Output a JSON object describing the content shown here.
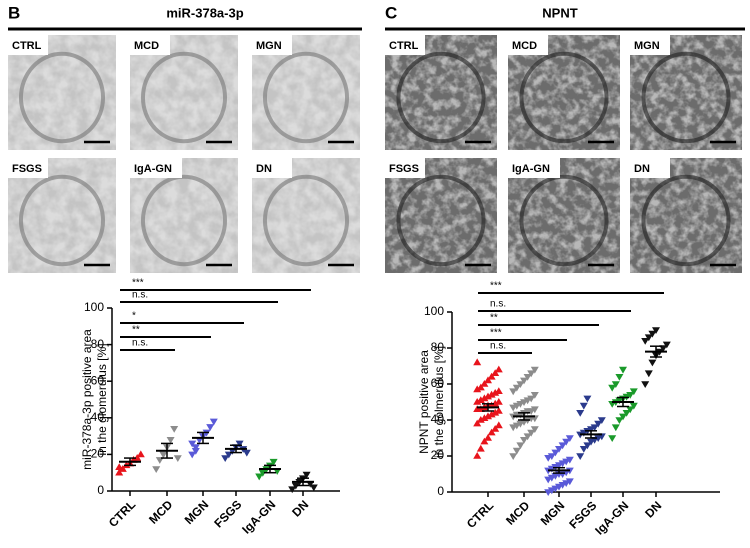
{
  "chart_data": [
    {
      "type": "dot",
      "panel": "B",
      "title": "miR-378a-3p",
      "image_labels": [
        "CTRL",
        "MCD",
        "MGN",
        "FSGS",
        "IgA-GN",
        "DN"
      ],
      "y_label": [
        "miR-378a-3p positive area",
        "in the glomerulus [%]"
      ],
      "categories": [
        "CTRL",
        "MCD",
        "MGN",
        "FSGS",
        "IgA-GN",
        "DN"
      ],
      "colors": [
        "#e8141c",
        "#8c8c8c",
        "#5a5ad8",
        "#2a3a8c",
        "#1a9a2a",
        "#111111"
      ],
      "points": [
        [
          10,
          12,
          14,
          15,
          17,
          18,
          20,
          13
        ],
        [
          12,
          17,
          20,
          24,
          28,
          34,
          18
        ],
        [
          20,
          24,
          28,
          30,
          32,
          35,
          38,
          26,
          22
        ],
        [
          18,
          20,
          22,
          24,
          26,
          23,
          21
        ],
        [
          8,
          10,
          12,
          14,
          16,
          11
        ],
        [
          1,
          3,
          5,
          7,
          9,
          4,
          2
        ]
      ],
      "means": [
        16,
        22,
        29,
        23,
        12,
        5
      ],
      "sem": [
        2,
        4,
        3,
        2,
        2,
        2
      ],
      "ylim": [
        0,
        100
      ],
      "yticks": [
        0,
        20,
        40,
        60,
        80,
        100
      ],
      "significance": [
        {
          "label": "***",
          "pair": [
            "CTRL",
            "DN"
          ]
        },
        {
          "label": "n.s.",
          "pair": [
            "CTRL",
            "IgA-GN"
          ]
        },
        {
          "label": "*",
          "pair": [
            "CTRL",
            "FSGS"
          ]
        },
        {
          "label": "**",
          "pair": [
            "CTRL",
            "MGN"
          ]
        },
        {
          "label": "n.s.",
          "pair": [
            "CTRL",
            "MCD"
          ]
        }
      ]
    },
    {
      "type": "dot",
      "panel": "C",
      "title": "NPNT",
      "image_labels": [
        "CTRL",
        "MCD",
        "MGN",
        "FSGS",
        "IgA-GN",
        "DN"
      ],
      "y_label": [
        "NPNT positive area",
        "in the golmerulus [%]"
      ],
      "categories": [
        "CTRL",
        "MCD",
        "MGN",
        "FSGS",
        "IgA-GN",
        "DN"
      ],
      "colors": [
        "#e8141c",
        "#8c8c8c",
        "#5a5ad8",
        "#2a3a8c",
        "#1a9a2a",
        "#111111"
      ],
      "points": [
        [
          20,
          24,
          28,
          30,
          33,
          35,
          37,
          38,
          40,
          41,
          42,
          43,
          44,
          45,
          46,
          46,
          47,
          48,
          48,
          49,
          50,
          50,
          51,
          52,
          53,
          54,
          55,
          56,
          57,
          58,
          60,
          62,
          64,
          66,
          68,
          72
        ],
        [
          20,
          23,
          26,
          29,
          31,
          33,
          35,
          36,
          37,
          38,
          39,
          40,
          41,
          41,
          42,
          43,
          43,
          44,
          45,
          45,
          46,
          47,
          48,
          49,
          50,
          51,
          52,
          54,
          56,
          58,
          60,
          62,
          64,
          66,
          68
        ],
        [
          0,
          1,
          2,
          3,
          4,
          5,
          6,
          7,
          8,
          9,
          10,
          10,
          11,
          12,
          12,
          13,
          14,
          15,
          16,
          17,
          18,
          19,
          20,
          22,
          24,
          26,
          28,
          30
        ],
        [
          20,
          24,
          26,
          28,
          29,
          30,
          31,
          32,
          33,
          34,
          35,
          36,
          38,
          40,
          44,
          48,
          52
        ],
        [
          30,
          36,
          40,
          42,
          44,
          46,
          48,
          49,
          50,
          51,
          52,
          53,
          54,
          56,
          58,
          60,
          64,
          68
        ],
        [
          60,
          66,
          72,
          76,
          78,
          80,
          82,
          84,
          86,
          88,
          90
        ]
      ],
      "means": [
        47,
        42,
        12,
        32,
        50,
        78
      ],
      "sem": [
        2,
        2,
        1.5,
        2,
        2.5,
        3
      ],
      "ylim": [
        0,
        100
      ],
      "yticks": [
        0,
        20,
        40,
        60,
        80,
        100
      ],
      "significance": [
        {
          "label": "***",
          "pair": [
            "CTRL",
            "DN"
          ]
        },
        {
          "label": "n.s.",
          "pair": [
            "CTRL",
            "IgA-GN"
          ]
        },
        {
          "label": "**",
          "pair": [
            "CTRL",
            "FSGS"
          ]
        },
        {
          "label": "***",
          "pair": [
            "CTRL",
            "MGN"
          ]
        },
        {
          "label": "n.s.",
          "pair": [
            "CTRL",
            "MCD"
          ]
        }
      ]
    }
  ]
}
